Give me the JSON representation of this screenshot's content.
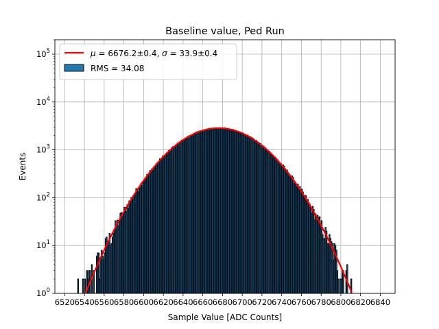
{
  "chart_data": {
    "type": "bar",
    "title": "Baseline value, Ped Run",
    "xlabel": "Sample Value [ADC Counts]",
    "ylabel": "Events",
    "xlim": [
      6510,
      6855
    ],
    "ylim": [
      1,
      200000
    ],
    "yscale": "log",
    "grid": true,
    "legend_position": "top-left",
    "x_ticks": [
      "6520",
      "6540",
      "6560",
      "6580",
      "6600",
      "6620",
      "6640",
      "6660",
      "6680",
      "6700",
      "6720",
      "6740",
      "6760",
      "6780",
      "6800",
      "6820",
      "6840"
    ],
    "y_ticks": [
      {
        "value": 1,
        "exp": "0"
      },
      {
        "value": 10,
        "exp": "1"
      },
      {
        "value": 100,
        "exp": "2"
      },
      {
        "value": 1000,
        "exp": "3"
      },
      {
        "value": 10000,
        "exp": "4"
      },
      {
        "value": 100000,
        "exp": "5"
      }
    ],
    "tick_base": "10",
    "histogram": {
      "name": "RMS = 34.08",
      "bin_width": 1,
      "x_start": 6535,
      "x_end": 6812,
      "mean": 6676.2,
      "sigma": 33.9,
      "peak_counts": 2850,
      "rms": 34.08,
      "isolated_bins": [
        {
          "x": 6533,
          "count": 2
        },
        {
          "x": 6810,
          "count": 2
        }
      ],
      "color": "#1f77b4"
    },
    "fit": {
      "name_mu": "μ",
      "name_mu_value": " = 6676.2±0.4, ",
      "name_sigma": "σ",
      "name_sigma_value": " = 33.9±0.4",
      "mu": 6676.2,
      "sigma": 33.9,
      "amplitude": 2850,
      "color": "#ff0000"
    }
  }
}
